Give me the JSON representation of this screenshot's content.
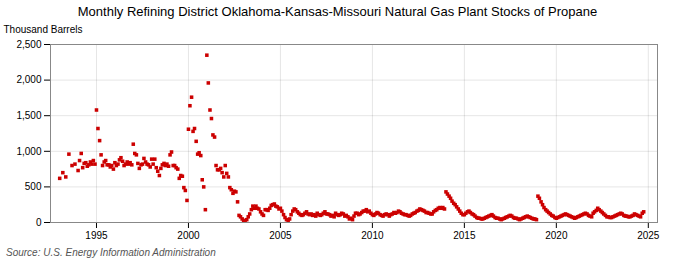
{
  "chart_data": {
    "type": "scatter",
    "title": "Monthly Refining District Oklahoma-Kansas-Missouri Natural Gas Plant Stocks of Propane",
    "ylabel": "Thousand Barrels",
    "source": "Source: U.S. Energy Information Administration",
    "color": "#cc0000",
    "marker": "square",
    "grid": true,
    "xlim": [
      1992.5,
      2025.5
    ],
    "xticks": [
      1995,
      2000,
      2005,
      2010,
      2015,
      2020,
      2025
    ],
    "ylim": [
      0,
      2500
    ],
    "yticks": [
      0,
      500,
      {
        "value": 1000,
        "label": "1,000"
      },
      {
        "value": 1500,
        "label": "1,500"
      },
      {
        "value": 2000,
        "label": "2,000"
      },
      {
        "value": 2500,
        "label": "2,500"
      }
    ],
    "x": [
      1993.0,
      1993.17,
      1993.33,
      1993.5,
      1993.67,
      1993.83,
      1994.0,
      1994.08,
      1994.17,
      1994.25,
      1994.33,
      1994.42,
      1994.5,
      1994.58,
      1994.67,
      1994.75,
      1994.83,
      1994.92,
      1995.0,
      1995.08,
      1995.17,
      1995.25,
      1995.33,
      1995.42,
      1995.5,
      1995.58,
      1995.67,
      1995.75,
      1995.83,
      1995.92,
      1996.0,
      1996.08,
      1996.17,
      1996.25,
      1996.33,
      1996.42,
      1996.5,
      1996.58,
      1996.67,
      1996.75,
      1996.83,
      1996.92,
      1997.0,
      1997.08,
      1997.17,
      1997.25,
      1997.33,
      1997.42,
      1997.5,
      1997.58,
      1997.67,
      1997.75,
      1997.83,
      1997.92,
      1998.0,
      1998.08,
      1998.17,
      1998.25,
      1998.33,
      1998.42,
      1998.5,
      1998.58,
      1998.67,
      1998.75,
      1998.83,
      1998.92,
      1999.0,
      1999.08,
      1999.17,
      1999.25,
      1999.33,
      1999.42,
      1999.5,
      1999.58,
      1999.67,
      1999.75,
      1999.83,
      1999.92,
      2000.0,
      2000.08,
      2000.17,
      2000.25,
      2000.33,
      2000.42,
      2000.5,
      2000.58,
      2000.67,
      2000.75,
      2000.83,
      2000.92,
      2001.0,
      2001.08,
      2001.17,
      2001.25,
      2001.33,
      2001.42,
      2001.5,
      2001.58,
      2001.67,
      2001.75,
      2001.83,
      2001.92,
      2002.0,
      2002.08,
      2002.17,
      2002.25,
      2002.33,
      2002.42,
      2002.5,
      2002.58,
      2002.67,
      2002.75,
      2002.83,
      2002.92,
      2003.0,
      2003.08,
      2003.17,
      2003.25,
      2003.33,
      2003.42,
      2003.5,
      2003.58,
      2003.67,
      2003.75,
      2003.83,
      2003.92,
      2004.0,
      2004.08,
      2004.17,
      2004.25,
      2004.33,
      2004.42,
      2004.5,
      2004.58,
      2004.67,
      2004.75,
      2004.83,
      2004.92,
      2005.0,
      2005.08,
      2005.17,
      2005.25,
      2005.33,
      2005.42,
      2005.5,
      2005.58,
      2005.67,
      2005.75,
      2005.83,
      2005.92,
      2006.0,
      2006.08,
      2006.17,
      2006.25,
      2006.33,
      2006.42,
      2006.5,
      2006.58,
      2006.67,
      2006.75,
      2006.83,
      2006.92,
      2007.0,
      2007.08,
      2007.17,
      2007.25,
      2007.33,
      2007.42,
      2007.5,
      2007.58,
      2007.67,
      2007.75,
      2007.83,
      2007.92,
      2008.0,
      2008.08,
      2008.17,
      2008.25,
      2008.33,
      2008.42,
      2008.5,
      2008.58,
      2008.67,
      2008.75,
      2008.83,
      2008.92,
      2009.0,
      2009.08,
      2009.17,
      2009.25,
      2009.33,
      2009.42,
      2009.5,
      2009.58,
      2009.67,
      2009.75,
      2009.83,
      2009.92,
      2010.0,
      2010.08,
      2010.17,
      2010.25,
      2010.33,
      2010.42,
      2010.5,
      2010.58,
      2010.67,
      2010.75,
      2010.83,
      2010.92,
      2011.0,
      2011.08,
      2011.17,
      2011.25,
      2011.33,
      2011.42,
      2011.5,
      2011.58,
      2011.67,
      2011.75,
      2011.83,
      2011.92,
      2012.0,
      2012.08,
      2012.17,
      2012.25,
      2012.33,
      2012.42,
      2012.5,
      2012.58,
      2012.67,
      2012.75,
      2012.83,
      2012.92,
      2013.0,
      2013.08,
      2013.17,
      2013.25,
      2013.33,
      2013.42,
      2013.5,
      2013.58,
      2013.67,
      2013.75,
      2013.83,
      2013.92,
      2014.0,
      2014.08,
      2014.17,
      2014.25,
      2014.33,
      2014.42,
      2014.5,
      2014.58,
      2014.67,
      2014.75,
      2014.83,
      2014.92,
      2015.0,
      2015.08,
      2015.17,
      2015.25,
      2015.33,
      2015.42,
      2015.5,
      2015.58,
      2015.67,
      2015.75,
      2015.83,
      2015.92,
      2016.0,
      2016.08,
      2016.17,
      2016.25,
      2016.33,
      2016.42,
      2016.5,
      2016.58,
      2016.67,
      2016.75,
      2016.83,
      2016.92,
      2017.0,
      2017.08,
      2017.17,
      2017.25,
      2017.33,
      2017.42,
      2017.5,
      2017.58,
      2017.67,
      2017.75,
      2017.83,
      2017.92,
      2018.0,
      2018.08,
      2018.17,
      2018.25,
      2018.33,
      2018.42,
      2018.5,
      2018.58,
      2018.67,
      2018.75,
      2018.83,
      2018.92,
      2019.0,
      2019.08,
      2019.17,
      2019.25,
      2019.33,
      2019.42,
      2019.5,
      2019.58,
      2019.67,
      2019.75,
      2019.83,
      2019.92,
      2020.0,
      2020.08,
      2020.17,
      2020.25,
      2020.33,
      2020.42,
      2020.5,
      2020.58,
      2020.67,
      2020.75,
      2020.83,
      2020.92,
      2021.0,
      2021.08,
      2021.17,
      2021.25,
      2021.33,
      2021.42,
      2021.5,
      2021.58,
      2021.67,
      2021.75,
      2021.83,
      2021.92,
      2022.0,
      2022.08,
      2022.17,
      2022.25,
      2022.33,
      2022.42,
      2022.5,
      2022.58,
      2022.67,
      2022.75,
      2022.83,
      2022.92,
      2023.0,
      2023.08,
      2023.17,
      2023.25,
      2023.33,
      2023.42,
      2023.5,
      2023.58,
      2023.67,
      2023.75,
      2023.83,
      2023.92,
      2024.0,
      2024.08,
      2024.17,
      2024.25,
      2024.33,
      2024.42,
      2024.5,
      2024.58,
      2024.67,
      2024.75
    ],
    "values": [
      620,
      700,
      640,
      960,
      800,
      820,
      730,
      870,
      970,
      770,
      830,
      840,
      790,
      810,
      850,
      820,
      870,
      820,
      1580,
      1320,
      1150,
      950,
      800,
      850,
      870,
      810,
      810,
      780,
      800,
      750,
      840,
      800,
      820,
      880,
      910,
      860,
      800,
      820,
      850,
      820,
      840,
      810,
      1100,
      970,
      950,
      830,
      760,
      810,
      820,
      900,
      850,
      820,
      810,
      780,
      890,
      820,
      890,
      770,
      720,
      660,
      760,
      810,
      830,
      800,
      820,
      790,
      950,
      990,
      800,
      800,
      770,
      750,
      620,
      660,
      650,
      490,
      450,
      310,
      1310,
      1640,
      1760,
      1280,
      1320,
      1140,
      960,
      980,
      940,
      600,
      500,
      180,
      2350,
      1960,
      1580,
      1460,
      1230,
      1200,
      800,
      740,
      740,
      760,
      700,
      640,
      800,
      690,
      640,
      490,
      460,
      410,
      440,
      430,
      290,
      100,
      80,
      50,
      30,
      20,
      40,
      80,
      120,
      180,
      230,
      200,
      230,
      200,
      190,
      150,
      120,
      100,
      180,
      180,
      170,
      200,
      240,
      250,
      260,
      230,
      220,
      190,
      200,
      160,
      110,
      70,
      40,
      30,
      50,
      110,
      160,
      190,
      180,
      150,
      130,
      110,
      100,
      110,
      130,
      150,
      120,
      110,
      120,
      100,
      110,
      90,
      130,
      110,
      100,
      110,
      130,
      150,
      120,
      120,
      110,
      90,
      100,
      80,
      130,
      110,
      100,
      110,
      130,
      120,
      90,
      100,
      80,
      50,
      60,
      40,
      90,
      130,
      130,
      110,
      120,
      140,
      160,
      160,
      180,
      150,
      160,
      130,
      110,
      100,
      120,
      140,
      130,
      110,
      100,
      90,
      110,
      120,
      110,
      90,
      110,
      120,
      140,
      130,
      140,
      160,
      150,
      130,
      120,
      110,
      110,
      100,
      90,
      100,
      120,
      130,
      140,
      160,
      170,
      190,
      180,
      170,
      160,
      140,
      140,
      130,
      120,
      120,
      150,
      170,
      180,
      200,
      210,
      200,
      210,
      190,
      430,
      400,
      370,
      340,
      300,
      270,
      250,
      220,
      190,
      160,
      130,
      110,
      110,
      130,
      150,
      160,
      140,
      120,
      110,
      90,
      70,
      60,
      60,
      50,
      50,
      60,
      70,
      80,
      90,
      100,
      110,
      90,
      70,
      60,
      60,
      50,
      40,
      50,
      60,
      70,
      80,
      90,
      100,
      90,
      70,
      60,
      60,
      50,
      40,
      50,
      60,
      70,
      80,
      90,
      80,
      70,
      60,
      50,
      50,
      40,
      370,
      340,
      290,
      250,
      210,
      180,
      160,
      140,
      120,
      100,
      90,
      70,
      60,
      70,
      80,
      90,
      100,
      110,
      120,
      110,
      100,
      90,
      80,
      70,
      60,
      70,
      80,
      90,
      100,
      110,
      120,
      130,
      120,
      100,
      90,
      80,
      130,
      150,
      170,
      200,
      180,
      160,
      140,
      120,
      100,
      80,
      80,
      70,
      70,
      80,
      90,
      100,
      110,
      120,
      130,
      120,
      100,
      90,
      90,
      80,
      80,
      90,
      100,
      120,
      110,
      100,
      90,
      80,
      130,
      150
    ]
  }
}
